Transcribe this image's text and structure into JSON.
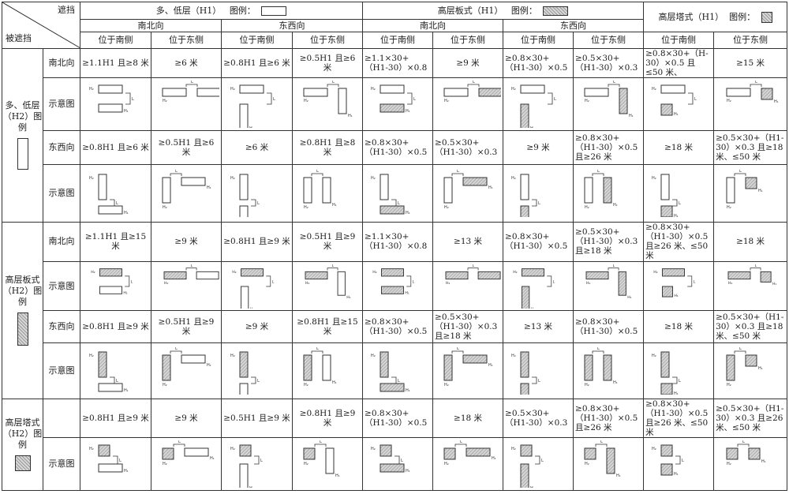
{
  "corner": {
    "top_right": "遮挡",
    "bottom_left": "被遮挡"
  },
  "groups": [
    {
      "title": "多、低层（H1）",
      "legend_label": "图例：",
      "swatch": "plain"
    },
    {
      "title": "高层板式（H1）",
      "legend_label": "图例：",
      "swatch": "hatch"
    },
    {
      "title": "高层塔式（H1）",
      "legend_label": "图例：",
      "swatch": "hatch"
    }
  ],
  "orientation_headers": [
    "南北向",
    "东西向",
    "南北向",
    "东西向"
  ],
  "position_headers": [
    "位于南侧",
    "位于东侧",
    "位于南侧",
    "位于东侧",
    "位于南侧",
    "位于东侧",
    "位于南侧",
    "位于东侧",
    "位于南侧",
    "位于东侧"
  ],
  "left_groups": [
    {
      "label": "多、低层（H2）图例",
      "swatch": "plain"
    },
    {
      "label": "高层板式（H2）图例",
      "swatch": "hatch"
    },
    {
      "label": "高层塔式（H2）图例",
      "swatch": "hatch"
    }
  ],
  "row_labels": {
    "ns": "南北向",
    "ew": "东西向",
    "diagram": "示意图"
  },
  "text_rows": [
    [
      "≥1.1H1 且≥8 米",
      "≥6 米",
      "≥0.8H1 且≥6 米",
      "≥0.5H1 且≥6 米",
      "≥1.1×30+（H1-30）×0.8",
      "≥9 米",
      "≥0.8×30+（H1-30）×0.5",
      "≥0.5×30+（H1-30）×0.3",
      "≥0.8×30+（H-30）×0.5 且≤50 米、",
      "≥15 米"
    ],
    [
      "≥0.8H1 且≥6 米",
      "≥0.5H1 且≥6 米",
      "≥6 米",
      "≥0.8H1 且≥8 米",
      "≥0.8×30+（H1-30）×0.5",
      "≥0.5×30+（H1-30）×0.3",
      "≥9 米",
      "≥0.8×30+（H1-30）×0.5 且≥26 米",
      "≥18 米",
      "≥0.5×30+（H1-30）×0.3 且≥18 米、≤50 米"
    ],
    [
      "≥1.1H1 且≥15 米",
      "≥9 米",
      "≥0.8H1 且≥9 米",
      "≥0.5H1 且≥9 米",
      "≥1.1×30+（H1-30）×0.8",
      "≥13 米",
      "≥0.8×30+（H1-30）×0.5",
      "≥0.5×30+（H1-30）×0.3 且≥18 米",
      "≥0.8×30+（H1-30）×0.5 且≥26 米、≤50 米",
      "≥18 米"
    ],
    [
      "≥0.8H1 且≥9 米",
      "≥0.5H1 且≥9 米",
      "≥9 米",
      "≥0.8H1 且≥15 米",
      "≥0.8×30+（H1-30）×0.5",
      "≥0.5×30+（H1-30）×0.3 且≥18 米",
      "≥13 米",
      "≥0.8×30+（H1-30）×0.5",
      "≥18 米",
      "≥0.5×30+（H1-30）×0.3 且≥18 米、≤50 米"
    ],
    [
      "≥0.8H1 且≥9 米",
      "≥9 米",
      "≥0.5H1 且≥9 米",
      "≥0.8H1 且≥9 米",
      "≥0.8×30+（H1-30）×0.5",
      "≥18 米",
      "≥0.5×30+（H1-30）×0.3",
      "≥0.8×30+（H1-30）×0.5 且≥26 米",
      "≥0.8×30+（H1-30）×0.5 且≥26 米、≤50 米",
      "≥0.5×30+（H1-30）×0.3 且≥26 米、≤50 米"
    ]
  ],
  "diagram_labels": {
    "h1": "H₁",
    "h2": "H₂",
    "l": "L"
  }
}
